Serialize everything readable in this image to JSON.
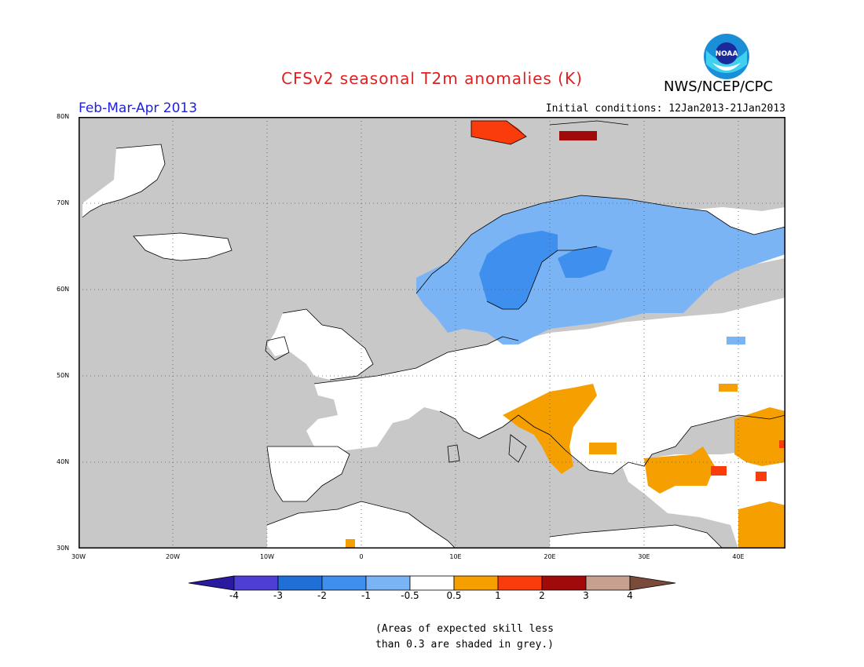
{
  "title": "CFSv2 seasonal T2m anomalies (K)",
  "agency": "NWS/NCEP/CPC",
  "logo_text": "NOAA",
  "season": "Feb-Mar-Apr 2013",
  "initial_conditions": "Initial conditions: 12Jan2013-21Jan2013",
  "lat_ticks": [
    "80N",
    "70N",
    "60N",
    "50N",
    "40N",
    "30N"
  ],
  "lon_ticks": [
    "30W",
    "20W",
    "10W",
    "0",
    "10E",
    "20E",
    "30E",
    "40E"
  ],
  "colorbar": {
    "labels": [
      "-4",
      "-3",
      "-2",
      "-1",
      "-0.5",
      "0.5",
      "1",
      "2",
      "3",
      "4"
    ],
    "colors": [
      "#2a1aa0",
      "#4d3fd4",
      "#1f6fd6",
      "#3f8fee",
      "#7ab4f5",
      "#ffffff",
      "#f5a000",
      "#fa3c0c",
      "#a00a0a",
      "#c8a090",
      "#7a4a3a"
    ]
  },
  "note_line1": "(Areas of expected skill less",
  "note_line2": "than 0.3 are shaded in grey.)",
  "colors": {
    "grey": "#c8c8c8",
    "ocean": "#c8c8c8",
    "title": "#e02020",
    "season": "#2020e0"
  }
}
